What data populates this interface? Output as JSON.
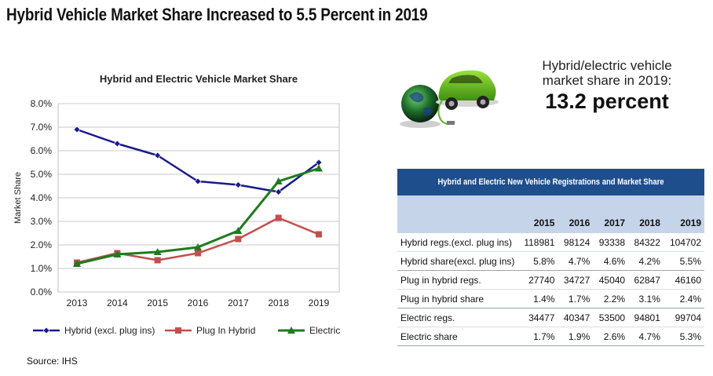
{
  "headline": "Hybrid Vehicle Market Share Increased to 5.5 Percent in 2019",
  "source": "Source: IHS",
  "callout": {
    "line1": "Hybrid/electric vehicle",
    "line2": "market share in 2019:",
    "value": "13.2 percent"
  },
  "colors": {
    "hybrid": "#1a1a8c",
    "plugin": "#c0504d",
    "electric": "#1e7b1e",
    "table_header": "#1f4e8c",
    "table_subheader": "#c6d4ea"
  },
  "chart_data": {
    "type": "line",
    "title": "Hybrid and Electric Vehicle Market Share",
    "xlabel": "",
    "ylabel": "Market Share",
    "x": [
      "2013",
      "2014",
      "2015",
      "2016",
      "2017",
      "2018",
      "2019"
    ],
    "yticks": [
      "0.0%",
      "1.0%",
      "2.0%",
      "3.0%",
      "4.0%",
      "5.0%",
      "6.0%",
      "7.0%",
      "8.0%"
    ],
    "ylim": [
      0,
      8
    ],
    "grid": "horizontal",
    "legend_position": "bottom",
    "series": [
      {
        "name": "Hybrid (excl. plug ins)",
        "marker": "diamond",
        "values": [
          6.9,
          6.3,
          5.8,
          4.7,
          4.55,
          4.25,
          5.5
        ]
      },
      {
        "name": "Plug In Hybrid",
        "marker": "square",
        "values": [
          1.25,
          1.65,
          1.35,
          1.65,
          2.25,
          3.15,
          2.45
        ]
      },
      {
        "name": "Electric",
        "marker": "triangle",
        "values": [
          1.2,
          1.6,
          1.7,
          1.9,
          2.6,
          4.7,
          5.25
        ]
      }
    ]
  },
  "table": {
    "title": "Hybrid and Electric New Vehicle Registrations and Market Share",
    "columns": [
      "2015",
      "2016",
      "2017",
      "2018",
      "2019"
    ],
    "rows": [
      {
        "label": "Hybrid regs.(excl. plug ins)",
        "values": [
          "118981",
          "98124",
          "93338",
          "84322",
          "104702"
        ]
      },
      {
        "label": "Hybrid share(excl. plug ins)",
        "values": [
          "5.8%",
          "4.7%",
          "4.6%",
          "4.2%",
          "5.5%"
        ]
      },
      {
        "label": "Plug in hybrid regs.",
        "values": [
          "27740",
          "34727",
          "45040",
          "62847",
          "46160"
        ]
      },
      {
        "label": "Plug in hybrid share",
        "values": [
          "1.4%",
          "1.7%",
          "2.2%",
          "3.1%",
          "2.4%"
        ]
      },
      {
        "label": "Electric regs.",
        "values": [
          "34477",
          "40347",
          "53500",
          "94801",
          "99704"
        ]
      },
      {
        "label": "Electric share",
        "values": [
          "1.7%",
          "1.9%",
          "2.6%",
          "4.7%",
          "5.3%"
        ]
      }
    ]
  }
}
